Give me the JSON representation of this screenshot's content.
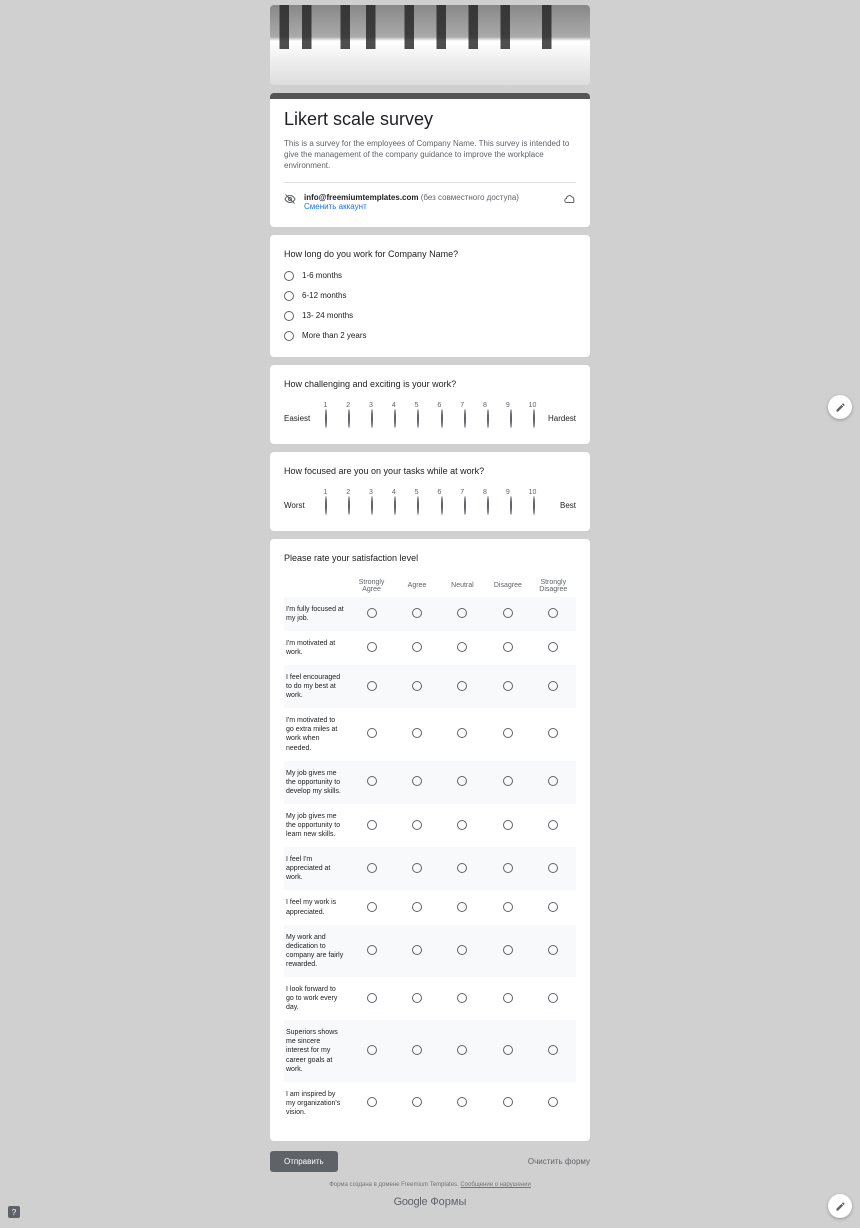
{
  "header": {
    "title": "Likert scale survey",
    "description": "This is a survey for the employees of Company Name. This survey is intended to give the management of the company guidance to improve the workplace environment.",
    "account_email": "info@freemiumtemplates.com",
    "account_note": "(без совместного доступа)",
    "switch_account": "Сменить аккаунт"
  },
  "q1": {
    "question": "How long do you work for Company Name?",
    "options": [
      "1-6 months",
      "6-12 months",
      "13- 24 months",
      "More than 2 years"
    ]
  },
  "q2": {
    "question": "How challenging and exciting is your work?",
    "left": "Easiest",
    "right": "Hardest",
    "scale": [
      "1",
      "2",
      "3",
      "4",
      "5",
      "6",
      "7",
      "8",
      "9",
      "10"
    ]
  },
  "q3": {
    "question": "How focused are you on your tasks while at work?",
    "left": "Worst",
    "right": "Best",
    "scale": [
      "1",
      "2",
      "3",
      "4",
      "5",
      "6",
      "7",
      "8",
      "9",
      "10"
    ]
  },
  "q4": {
    "question": "Please rate your satisfaction level",
    "columns": [
      "Strongly Agree",
      "Agree",
      "Neutral",
      "Disagree",
      "Strongly Disagree"
    ],
    "rows": [
      "I'm fully focused at my job.",
      "I'm motivated at work.",
      "I feel encouraged to do my best at work.",
      "I'm motivated to go extra miles at work when needed.",
      "My job gives me the opportunity to develop my skills.",
      "My job gives me the opportunity to learn new skills.",
      "I feel I'm appreciated at work.",
      "I feel my work is appreciated.",
      "My work and dedication to company are fairly rewarded.",
      "I look forward to go to work every day.",
      "Superiors shows me sincere interest for my career goals at work.",
      "I am inspired by my organization's vision."
    ]
  },
  "footer": {
    "submit": "Отправить",
    "clear": "Очистить форму",
    "disclaimer_pre": "Форма создана в домене Freemium Templates. ",
    "disclaimer_link": "Сообщение о нарушении",
    "brand_google": "Google",
    "brand_forms": " Формы"
  },
  "colors": {
    "page_bg": "#d0d0d0",
    "card_bg": "#ffffff",
    "accent": "#5f6368",
    "link": "#1a73e8",
    "text": "#202124",
    "muted": "#5f6368",
    "row_alt": "#f8f9fa"
  }
}
